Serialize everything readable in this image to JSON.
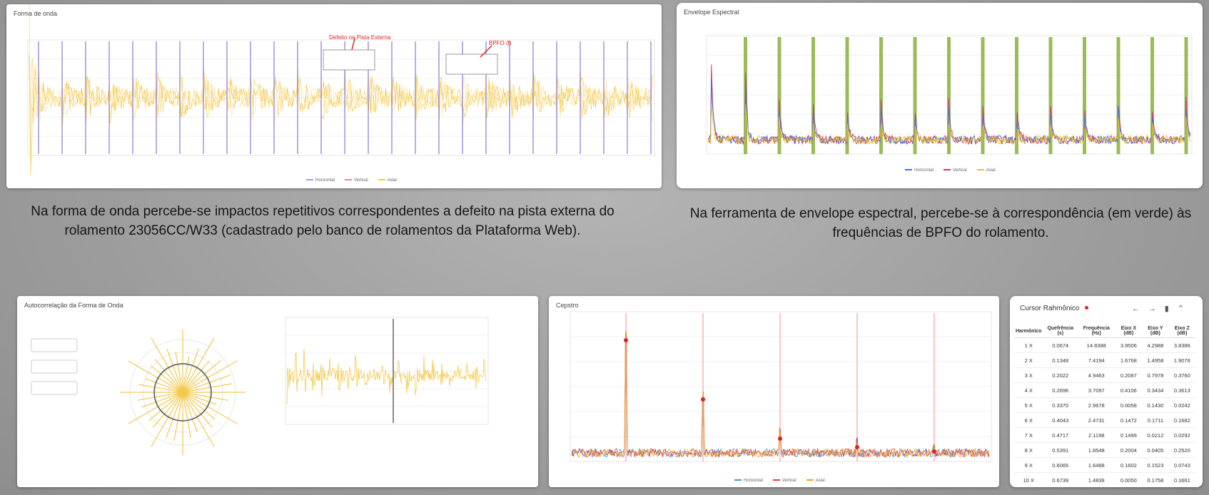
{
  "panels": {
    "waveform": {
      "title": "Forma de onda",
      "annotation_1": "Defeito na Pista Externa",
      "annotation_2": "BPFO (f)"
    },
    "envelope": {
      "title": "Envelope Espectral"
    },
    "autocorrelation": {
      "title": "Autocorrelação da Forma de Onda"
    },
    "cepstrum": {
      "title": "Cepstro"
    },
    "legend": [
      "Horizontal",
      "Vertical",
      "Axial"
    ]
  },
  "captions": {
    "left": "Na forma de onda percebe-se impactos repetitivos correspondentes a defeito na pista externa do rolamento 23056CC/W33 (cadastrado pelo banco de rolamentos da Plataforma Web).",
    "right": "Na ferramenta de envelope espectral, percebe-se à correspondência (em verde) às frequências de BPFO do rolamento."
  },
  "table": {
    "title": "Cursor Rahmônico",
    "header": [
      "Harmônico",
      "Quefrência (s)",
      "Frequência (Hz)",
      "Eixo X (dB)",
      "Eixo Y (dB)",
      "Eixo Z (dB)"
    ],
    "rows": [
      [
        "1 X",
        "0.0674",
        "14.8388",
        "3.9506",
        "4.2988",
        "3.8386"
      ],
      [
        "2 X",
        "0.1348",
        "7.4194",
        "1.6768",
        "1.4958",
        "1.9076"
      ],
      [
        "3 X",
        "0.2022",
        "4.9463",
        "0.2087",
        "0.7978",
        "0.3760"
      ],
      [
        "4 X",
        "0.2696",
        "3.7097",
        "0.4106",
        "0.3434",
        "0.3613"
      ],
      [
        "5 X",
        "0.3370",
        "2.9678",
        "0.0058",
        "0.1430",
        "0.0242"
      ],
      [
        "6 X",
        "0.4043",
        "2.4731",
        "0.1472",
        "0.1711",
        "0.1682"
      ],
      [
        "7 X",
        "0.4717",
        "2.1198",
        "0.1499",
        "0.0212",
        "0.0292"
      ],
      [
        "8 X",
        "0.5391",
        "1.8548",
        "0.2004",
        "0.0405",
        "0.2520"
      ],
      [
        "9 X",
        "0.6065",
        "1.6488",
        "0.1602",
        "0.1523",
        "0.0743"
      ],
      [
        "10 X",
        "0.6739",
        "1.4839",
        "0.0050",
        "0.1758",
        "0.1661"
      ]
    ]
  }
}
